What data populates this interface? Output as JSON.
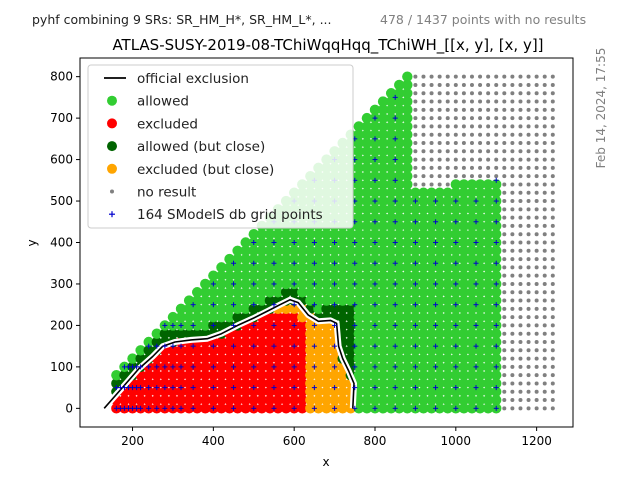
{
  "top_left_note": "pyhf combining 9 SRs: SR_HM_H*, SR_HM_L*, ...",
  "top_right_note": "478 / 1437 points with no results",
  "side_timestamp": "Feb 14, 2024, 17:55",
  "colors": {
    "allowed": "#32cd32",
    "excluded": "#ff0000",
    "allowed_close": "#006400",
    "excluded_close": "#ffa500",
    "no_result": "#808080",
    "grid_point": "#0000cd",
    "official": "#000000"
  },
  "chart_data": {
    "type": "scatter",
    "title": "ATLAS-SUSY-2019-08-TChiWqqHqq_TChiWH_[[x, y], [x, y]]",
    "xlabel": "x",
    "ylabel": "y",
    "xlim": [
      70,
      1290
    ],
    "ylim": [
      -45,
      845
    ],
    "xticks": [
      200,
      400,
      600,
      800,
      1000,
      1200
    ],
    "yticks": [
      0,
      100,
      200,
      300,
      400,
      500,
      600,
      700,
      800
    ],
    "grid": false,
    "legend_position": "top-left",
    "legend": [
      {
        "label": "official exclusion",
        "marker": "line",
        "color": "#000000"
      },
      {
        "label": "allowed",
        "marker": "circle",
        "color": "#32cd32"
      },
      {
        "label": "excluded",
        "marker": "circle",
        "color": "#ff0000"
      },
      {
        "label": "allowed (but close)",
        "marker": "circle",
        "color": "#006400"
      },
      {
        "label": "excluded (but close)",
        "marker": "circle",
        "color": "#ffa500"
      },
      {
        "label": "no result",
        "marker": "dot",
        "color": "#808080"
      },
      {
        "label": "164 SModelS db grid points",
        "marker": "plus",
        "color": "#0000cd"
      }
    ],
    "official_exclusion": {
      "x": [
        130,
        175,
        215,
        250,
        275,
        305,
        345,
        385,
        420,
        460,
        500,
        535,
        565,
        590,
        610,
        635,
        660,
        690,
        705,
        710,
        720,
        735,
        748,
        745
      ],
      "y": [
        0,
        50,
        95,
        125,
        150,
        160,
        165,
        168,
        180,
        200,
        218,
        235,
        250,
        262,
        255,
        225,
        210,
        212,
        205,
        150,
        120,
        90,
        60,
        0
      ]
    },
    "point_groups": {
      "no_result": {
        "description_rule": "x from 200 to 1250 step 20, y from 0 step 20 up to min(x-80, 810); shown where not covered by the results region",
        "x_range": [
          200,
          1250
        ],
        "x_step": 20,
        "y_step": 20,
        "y_offset": 80,
        "y_max": 810
      },
      "results_region": {
        "x_range": [
          160,
          1100
        ],
        "x_step": 20,
        "y_step": 20,
        "y_offset": 80,
        "y_max_by_x": [
          [
            900,
            520
          ],
          [
            1000,
            540
          ],
          [
            1100,
            550
          ]
        ]
      }
    },
    "smodels_grid_points": {
      "x": [
        160,
        170,
        180,
        190,
        200,
        210,
        220,
        240,
        260,
        280,
        300,
        320,
        350,
        400,
        450,
        500,
        550,
        600,
        650,
        700,
        750,
        800,
        850,
        900,
        950,
        1000,
        1050,
        1100
      ],
      "y_step": 50
    }
  }
}
